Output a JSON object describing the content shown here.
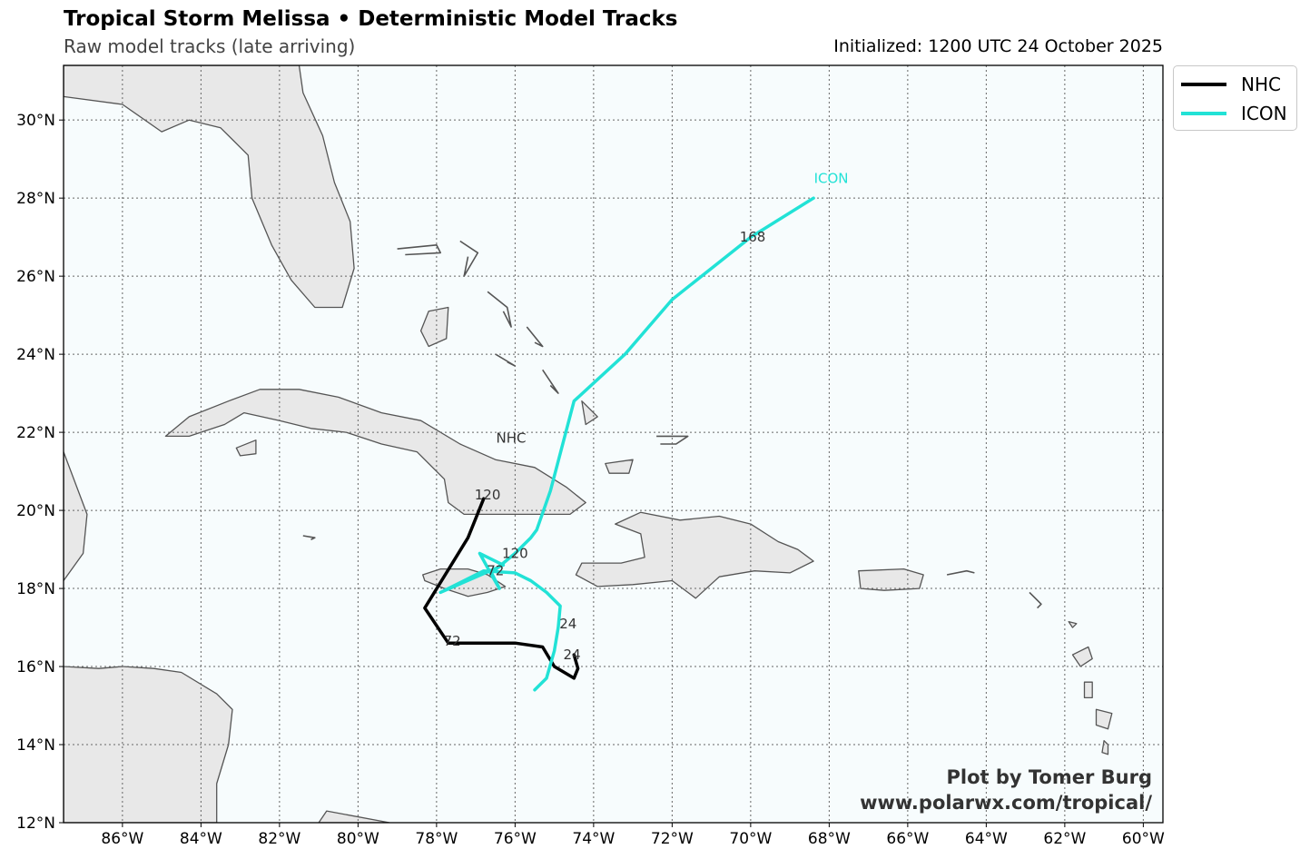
{
  "title": "Tropical Storm Melissa • Deterministic Model Tracks",
  "subtitle": "Raw model tracks (late arriving)",
  "initialized": "Initialized: 1200 UTC 24 October 2025",
  "map": {
    "lon_range": [
      -87.5,
      -59.5
    ],
    "lat_range": [
      12,
      31.4
    ],
    "lon_ticks": [
      {
        "value": -86,
        "label": "86°W"
      },
      {
        "value": -84,
        "label": "84°W"
      },
      {
        "value": -82,
        "label": "82°W"
      },
      {
        "value": -80,
        "label": "80°W"
      },
      {
        "value": -78,
        "label": "78°W"
      },
      {
        "value": -76,
        "label": "76°W"
      },
      {
        "value": -74,
        "label": "74°W"
      },
      {
        "value": -72,
        "label": "72°W"
      },
      {
        "value": -70,
        "label": "70°W"
      },
      {
        "value": -68,
        "label": "68°W"
      },
      {
        "value": -66,
        "label": "66°W"
      },
      {
        "value": -64,
        "label": "64°W"
      },
      {
        "value": -62,
        "label": "62°W"
      },
      {
        "value": -60,
        "label": "60°W"
      }
    ],
    "lat_ticks": [
      {
        "value": 12,
        "label": "12°N"
      },
      {
        "value": 14,
        "label": "14°N"
      },
      {
        "value": 16,
        "label": "16°N"
      },
      {
        "value": 18,
        "label": "18°N"
      },
      {
        "value": 20,
        "label": "20°N"
      },
      {
        "value": 22,
        "label": "22°N"
      },
      {
        "value": 24,
        "label": "24°N"
      },
      {
        "value": 26,
        "label": "26°N"
      },
      {
        "value": 28,
        "label": "28°N"
      },
      {
        "value": 30,
        "label": "30°N"
      }
    ],
    "grid": true,
    "ocean_color": "#f7fcfd",
    "land_color": "#e8e8e8",
    "coast_color": "#555555"
  },
  "legend": [
    {
      "name": "NHC",
      "color": "#000000"
    },
    {
      "name": "ICON",
      "color": "#22e2d6"
    }
  ],
  "tracks": [
    {
      "name": "NHC",
      "color": "#000000",
      "points": [
        [
          -74.5,
          16.3
        ],
        [
          -74.4,
          15.95
        ],
        [
          -74.5,
          15.7
        ],
        [
          -75.0,
          16.0
        ],
        [
          -75.3,
          16.5
        ],
        [
          -76.0,
          16.6
        ],
        [
          -77.7,
          16.6
        ],
        [
          -78.3,
          17.5
        ],
        [
          -77.2,
          19.3
        ],
        [
          -76.8,
          20.3
        ]
      ],
      "labels": [
        {
          "text": "24",
          "lon": -74.55,
          "lat": 16.3
        },
        {
          "text": "72",
          "lon": -77.6,
          "lat": 16.65
        },
        {
          "text": "120",
          "lon": -76.7,
          "lat": 20.4
        },
        {
          "text": "NHC",
          "lon": -76.1,
          "lat": 21.85
        }
      ]
    },
    {
      "name": "ICON",
      "color": "#22e2d6",
      "points": [
        [
          -75.5,
          15.4
        ],
        [
          -75.2,
          15.7
        ],
        [
          -75.0,
          16.4
        ],
        [
          -74.9,
          17.0
        ],
        [
          -74.85,
          17.55
        ],
        [
          -75.2,
          17.9
        ],
        [
          -75.6,
          18.2
        ],
        [
          -76.0,
          18.4
        ],
        [
          -76.8,
          18.45
        ],
        [
          -77.9,
          17.9
        ],
        [
          -76.3,
          18.6
        ],
        [
          -76.9,
          18.9
        ],
        [
          -76.6,
          18.35
        ],
        [
          -76.4,
          18.0
        ],
        [
          -76.6,
          18.4
        ],
        [
          -76.0,
          18.9
        ],
        [
          -75.6,
          19.3
        ],
        [
          -75.45,
          19.5
        ],
        [
          -75.1,
          20.5
        ],
        [
          -74.5,
          22.8
        ],
        [
          -73.2,
          24.0
        ],
        [
          -72.0,
          25.4
        ],
        [
          -70.0,
          27.0
        ],
        [
          -68.4,
          28.0
        ]
      ],
      "labels": [
        {
          "text": "24",
          "lon": -74.65,
          "lat": 17.1
        },
        {
          "text": "72",
          "lon": -76.5,
          "lat": 18.45
        },
        {
          "text": "120",
          "lon": -76.0,
          "lat": 18.9
        },
        {
          "text": "168",
          "lon": -69.95,
          "lat": 27.0
        },
        {
          "text": "ICON",
          "lon": -67.95,
          "lat": 28.5
        }
      ]
    }
  ],
  "credit": {
    "line1": "Plot by Tomer Burg",
    "line2": "www.polarwx.com/tropical/"
  }
}
